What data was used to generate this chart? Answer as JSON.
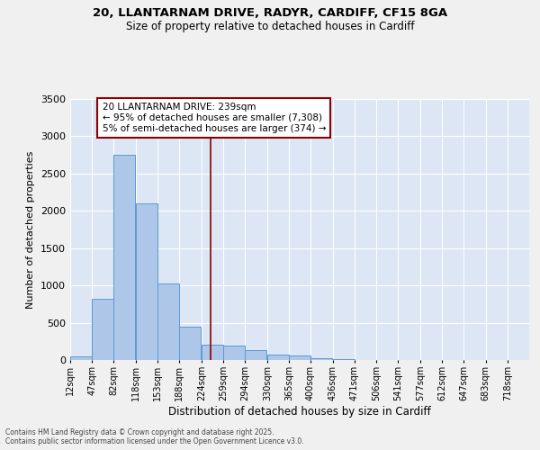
{
  "title_line1": "20, LLANTARNAM DRIVE, RADYR, CARDIFF, CF15 8GA",
  "title_line2": "Size of property relative to detached houses in Cardiff",
  "xlabel": "Distribution of detached houses by size in Cardiff",
  "ylabel": "Number of detached properties",
  "categories": [
    "12sqm",
    "47sqm",
    "82sqm",
    "118sqm",
    "153sqm",
    "188sqm",
    "224sqm",
    "259sqm",
    "294sqm",
    "330sqm",
    "365sqm",
    "400sqm",
    "436sqm",
    "471sqm",
    "506sqm",
    "541sqm",
    "577sqm",
    "612sqm",
    "647sqm",
    "683sqm",
    "718sqm"
  ],
  "values": [
    50,
    820,
    2750,
    2100,
    1020,
    450,
    210,
    190,
    130,
    70,
    55,
    30,
    10,
    5,
    2,
    1,
    1,
    0,
    0,
    0,
    0
  ],
  "bar_color": "#aec6e8",
  "bar_edge_color": "#5b9bd5",
  "bg_color": "#dce6f5",
  "grid_color": "#ffffff",
  "vline_color": "#8b0000",
  "annotation_text": "20 LLANTARNAM DRIVE: 239sqm\n← 95% of detached houses are smaller (7,308)\n5% of semi-detached houses are larger (374) →",
  "annotation_box_color": "#8b0000",
  "footnote": "Contains HM Land Registry data © Crown copyright and database right 2025.\nContains public sector information licensed under the Open Government Licence v3.0.",
  "ylim": [
    0,
    3500
  ],
  "bin_edges": [
    12,
    47,
    82,
    118,
    153,
    188,
    224,
    259,
    294,
    330,
    365,
    400,
    436,
    471,
    506,
    541,
    577,
    612,
    647,
    683,
    718,
    753
  ],
  "fig_bg": "#f0f0f0"
}
